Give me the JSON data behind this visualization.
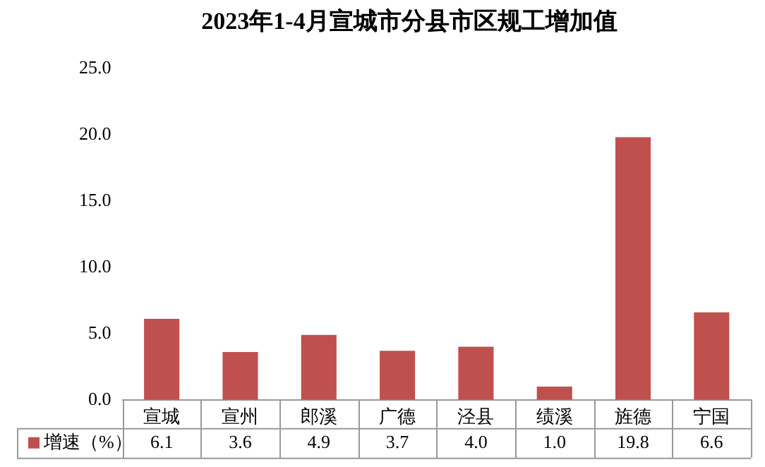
{
  "chart_data": {
    "type": "bar",
    "title": "2023年1-4月宣城市分县市区规工增加值",
    "categories": [
      "宣城",
      "宣州",
      "郎溪",
      "广德",
      "泾县",
      "绩溪",
      "旌德",
      "宁国"
    ],
    "series": [
      {
        "name": "增速（%）",
        "color": "#c0504d",
        "values": [
          6.1,
          3.6,
          4.9,
          3.7,
          4.0,
          1.0,
          19.8,
          6.6
        ],
        "value_labels": [
          "6.1",
          "3.6",
          "4.9",
          "3.7",
          "4.0",
          "1.0",
          "19.8",
          "6.6"
        ]
      }
    ],
    "ylim": [
      0,
      25
    ],
    "yticks": [
      {
        "value": 0,
        "label": "0.0"
      },
      {
        "value": 5,
        "label": "5.0"
      },
      {
        "value": 10,
        "label": "10.0"
      },
      {
        "value": 15,
        "label": "15.0"
      },
      {
        "value": 20,
        "label": "20.0"
      },
      {
        "value": 25,
        "label": "25.0"
      }
    ],
    "grid": false,
    "legend": "bottom"
  }
}
